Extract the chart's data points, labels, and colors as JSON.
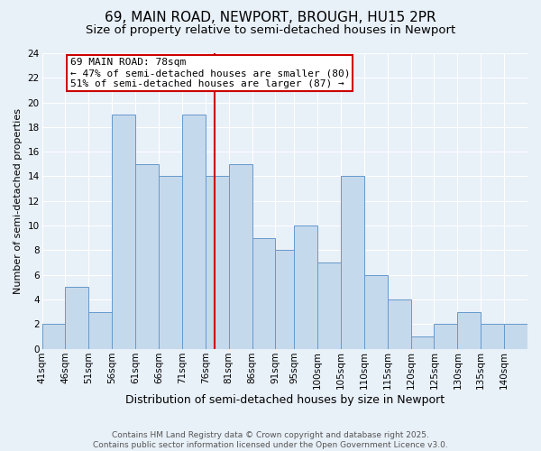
{
  "title": "69, MAIN ROAD, NEWPORT, BROUGH, HU15 2PR",
  "subtitle": "Size of property relative to semi-detached houses in Newport",
  "xlabel": "Distribution of semi-detached houses by size in Newport",
  "ylabel": "Number of semi-detached properties",
  "bin_labels": [
    "41sqm",
    "46sqm",
    "51sqm",
    "56sqm",
    "61sqm",
    "66sqm",
    "71sqm",
    "76sqm",
    "81sqm",
    "86sqm",
    "91sqm",
    "95sqm",
    "100sqm",
    "105sqm",
    "110sqm",
    "115sqm",
    "120sqm",
    "125sqm",
    "130sqm",
    "135sqm",
    "140sqm"
  ],
  "bin_edges": [
    41,
    46,
    51,
    56,
    61,
    66,
    71,
    76,
    81,
    86,
    91,
    95,
    100,
    105,
    110,
    115,
    120,
    125,
    130,
    135,
    140,
    145
  ],
  "bar_heights": [
    2,
    5,
    3,
    19,
    15,
    14,
    19,
    14,
    15,
    9,
    8,
    10,
    7,
    14,
    6,
    4,
    1,
    2,
    3,
    2,
    2
  ],
  "bar_color": "#c5d9ec",
  "bar_edge_color": "#6699cc",
  "property_line_x": 78,
  "property_line_color": "#cc0000",
  "annotation_line1": "69 MAIN ROAD: 78sqm",
  "annotation_line2": "← 47% of semi-detached houses are smaller (80)",
  "annotation_line3": "51% of semi-detached houses are larger (87) →",
  "annotation_box_color": "#ffffff",
  "annotation_box_edge_color": "#cc0000",
  "ylim": [
    0,
    24
  ],
  "yticks": [
    0,
    2,
    4,
    6,
    8,
    10,
    12,
    14,
    16,
    18,
    20,
    22,
    24
  ],
  "background_color": "#e8f0f8",
  "grid_color": "#ffffff",
  "footnote": "Contains HM Land Registry data © Crown copyright and database right 2025.\nContains public sector information licensed under the Open Government Licence v3.0.",
  "title_fontsize": 11,
  "subtitle_fontsize": 9.5,
  "xlabel_fontsize": 9,
  "ylabel_fontsize": 8,
  "tick_fontsize": 7.5,
  "annotation_fontsize": 8,
  "footnote_fontsize": 6.5
}
